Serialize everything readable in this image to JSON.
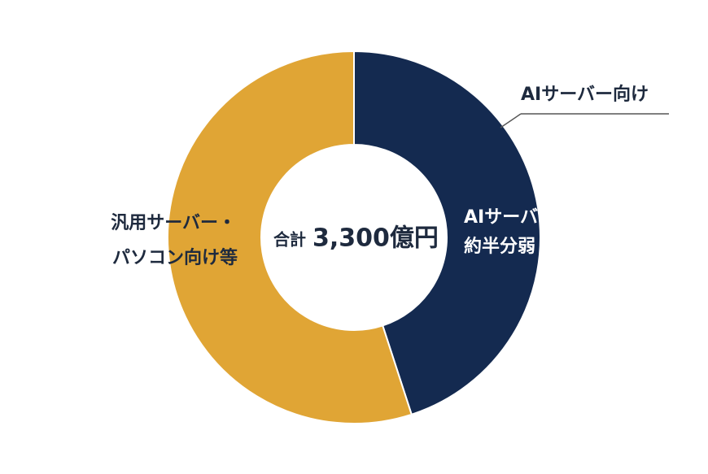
{
  "chart_data": {
    "type": "donut",
    "values": [
      45,
      55
    ],
    "colors": [
      "#142a50",
      "#e0a535"
    ],
    "labels": [
      [
        "AIサーバー向け",
        "約半分弱"
      ],
      [
        "汎用サーバー・",
        "パソコン向け等"
      ]
    ],
    "callout": "AIサーバー向け",
    "center_title": "合計",
    "center_total": "3,300億円"
  }
}
